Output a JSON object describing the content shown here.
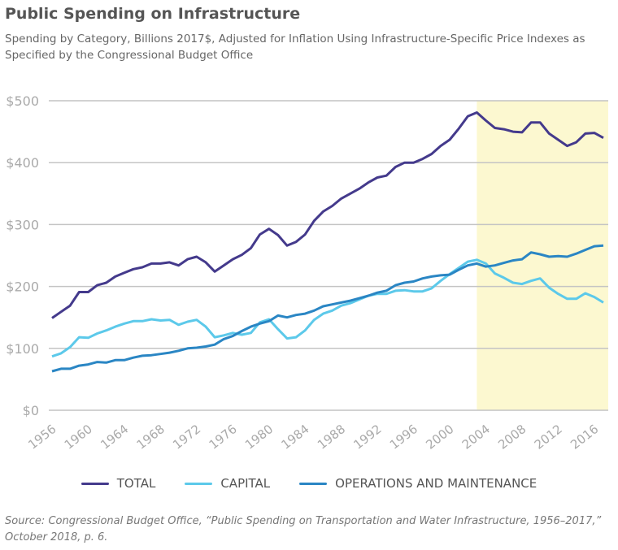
{
  "title": "Public Spending on Infrastructure",
  "subtitle": "Spending by Category, Billions 2017$, Adjusted for Inflation Using Infrastructure-Specific Price Indexes as Specified by the Congressional Budget Office",
  "source": "Source: Congressional Budget Office, “Public Spending on Transportation and Water Infrastructure, 1956–2017,” October 2018, p. 6.",
  "chart_data": {
    "type": "line",
    "title": "Public Spending on Infrastructure",
    "xlabel": "",
    "ylabel": "",
    "x_start": 1956,
    "x_end": 2017,
    "xlim": [
      1956,
      2017
    ],
    "ylim": [
      0,
      500
    ],
    "y_ticks": [
      0,
      100,
      200,
      300,
      400,
      500
    ],
    "y_tick_labels": [
      "$0",
      "$100",
      "$200",
      "$300",
      "$400",
      "$500"
    ],
    "x_ticks": [
      1956,
      1960,
      1964,
      1968,
      1972,
      1976,
      1980,
      1984,
      1988,
      1992,
      1996,
      2000,
      2004,
      2008,
      2012,
      2016
    ],
    "x_tick_labels": [
      "1956",
      "1960",
      "1964",
      "1968",
      "1972",
      "1976",
      "1980",
      "1984",
      "1988",
      "1992",
      "1996",
      "2000",
      "2004",
      "2008",
      "2012",
      "2016"
    ],
    "grid": "horizontal",
    "legend_position": "bottom",
    "shaded_region": {
      "from": 2003,
      "to": 2017,
      "color": "#fcf8d0"
    },
    "series": [
      {
        "name": "TOTAL",
        "color": "#443a8c",
        "values": [
          149,
          159,
          169,
          191,
          191,
          202,
          206,
          216,
          222,
          228,
          231,
          237,
          237,
          239,
          234,
          244,
          248,
          239,
          224,
          234,
          244,
          251,
          262,
          284,
          293,
          283,
          266,
          272,
          284,
          306,
          321,
          330,
          342,
          350,
          358,
          368,
          376,
          379,
          393,
          400,
          400,
          406,
          414,
          427,
          437,
          455,
          475,
          481,
          468,
          456,
          454,
          450,
          449,
          465,
          465,
          447,
          437,
          427,
          433,
          447,
          448,
          440
        ]
      },
      {
        "name": "CAPITAL",
        "color": "#5cc9ea",
        "values": [
          87,
          92,
          102,
          118,
          117,
          124,
          129,
          135,
          140,
          144,
          144,
          147,
          145,
          146,
          138,
          143,
          146,
          135,
          118,
          121,
          125,
          122,
          125,
          142,
          147,
          131,
          116,
          118,
          129,
          146,
          156,
          161,
          169,
          173,
          179,
          185,
          188,
          188,
          193,
          194,
          192,
          192,
          197,
          209,
          220,
          230,
          240,
          243,
          237,
          221,
          214,
          206,
          204,
          209,
          213,
          198,
          188,
          180,
          180,
          189,
          183,
          174
        ]
      },
      {
        "name": "OPERATIONS AND MAINTENANCE",
        "color": "#2a86c4",
        "values": [
          63,
          67,
          67,
          72,
          74,
          78,
          77,
          81,
          81,
          85,
          88,
          89,
          91,
          93,
          96,
          100,
          101,
          103,
          106,
          115,
          120,
          128,
          135,
          140,
          144,
          153,
          150,
          154,
          156,
          161,
          168,
          171,
          174,
          177,
          181,
          185,
          190,
          193,
          202,
          206,
          208,
          213,
          216,
          218,
          219,
          227,
          234,
          237,
          232,
          234,
          238,
          242,
          244,
          255,
          252,
          248,
          249,
          248,
          253,
          259,
          265,
          266
        ]
      }
    ]
  }
}
